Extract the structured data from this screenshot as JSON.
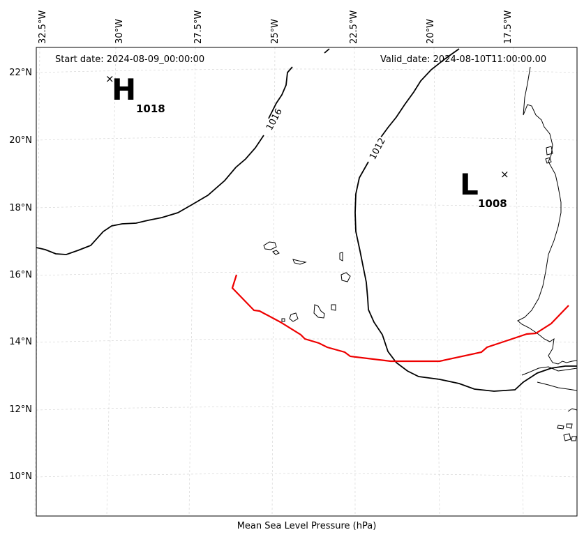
{
  "header": {
    "start_date": "Start date: 2024-08-09_00:00:00",
    "valid_date": "Valid_date: 2024-08-10T11:00:00.00"
  },
  "xlabel": "Mean Sea Level Pressure (hPa)",
  "lon_ticks": [
    "32.5°W",
    "30°W",
    "27.5°W",
    "25°W",
    "22.5°W",
    "20°W",
    "17.5°W"
  ],
  "lat_ticks": [
    "22°N",
    "20°N",
    "18°N",
    "16°N",
    "14°N",
    "12°N",
    "10°N"
  ],
  "systems": {
    "high": {
      "letter": "H",
      "value": "1018",
      "marker": "×"
    },
    "low": {
      "letter": "L",
      "value": "1008",
      "marker": "×"
    }
  },
  "isobars": [
    {
      "label": "1016",
      "hpa": 1016
    },
    {
      "label": "1012",
      "hpa": 1012
    }
  ],
  "colors": {
    "track": "#ee0000",
    "isobar": "#000000",
    "coast": "#000000",
    "grid": "#cccccc"
  }
}
